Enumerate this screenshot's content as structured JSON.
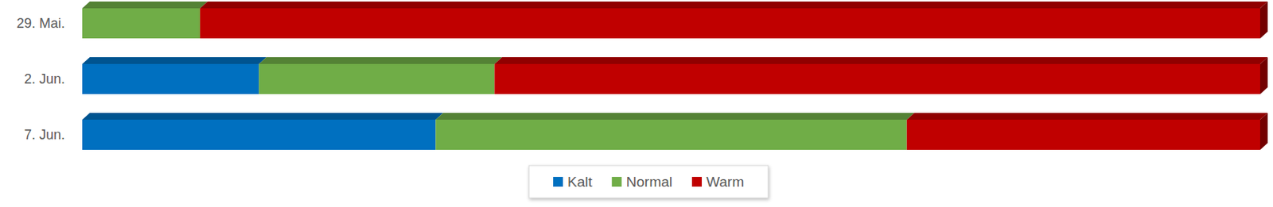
{
  "chart_data": {
    "type": "bar",
    "orientation": "horizontal",
    "stacked": true,
    "categories": [
      "29. Mai.",
      "2. Jun.",
      "7. Jun."
    ],
    "series": [
      {
        "name": "Kalt",
        "color": "#0070c0",
        "values": [
          0,
          15,
          30
        ]
      },
      {
        "name": "Normal",
        "color": "#70ad47",
        "values": [
          10,
          20,
          40
        ]
      },
      {
        "name": "Warm",
        "color": "#c00000",
        "values": [
          90,
          65,
          30
        ]
      }
    ],
    "xlim": [
      0,
      100
    ],
    "tick_labels": "y",
    "legend": "bottom",
    "grid": false
  }
}
